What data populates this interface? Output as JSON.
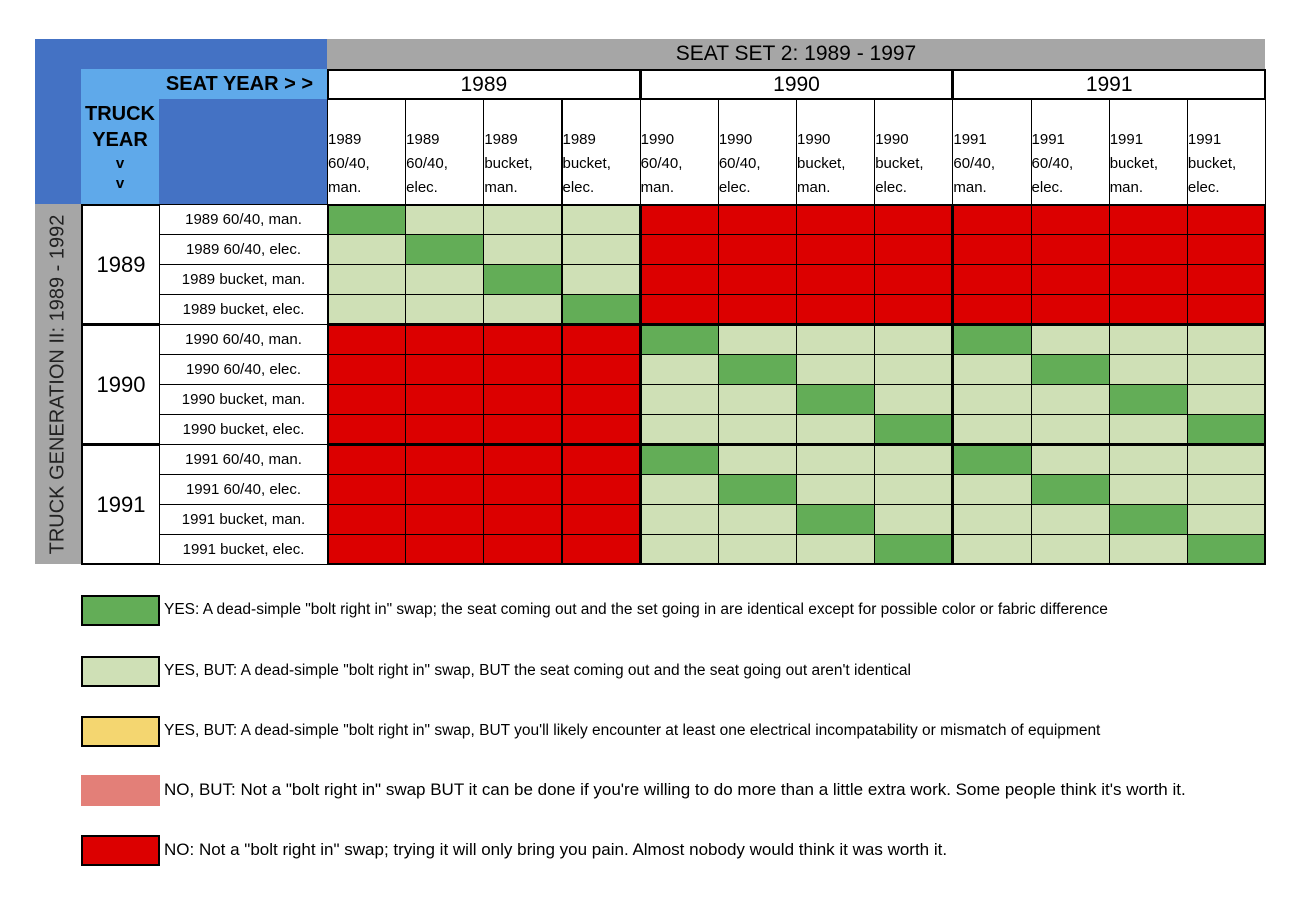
{
  "header": {
    "seat_set_title": "SEAT SET 2: 1989 - 1997",
    "seat_year_label": "SEAT YEAR > >",
    "truck_year_label_lines": [
      "TRUCK",
      "YEAR",
      "v",
      "v"
    ],
    "truck_generation_label": "TRUCK GENERATION II: 1989 - 1992"
  },
  "seat_years": [
    "1989",
    "1990",
    "1991"
  ],
  "seat_columns": [
    {
      "year": "1989",
      "type": "60/40,",
      "mode": "man."
    },
    {
      "year": "1989",
      "type": "60/40,",
      "mode": "elec."
    },
    {
      "year": "1989",
      "type": "bucket,",
      "mode": "man."
    },
    {
      "year": "1989",
      "type": "bucket,",
      "mode": "elec."
    },
    {
      "year": "1990",
      "type": "60/40,",
      "mode": "man."
    },
    {
      "year": "1990",
      "type": "60/40,",
      "mode": "elec."
    },
    {
      "year": "1990",
      "type": "bucket,",
      "mode": "man."
    },
    {
      "year": "1990",
      "type": "bucket,",
      "mode": "elec."
    },
    {
      "year": "1991",
      "type": "60/40,",
      "mode": "man."
    },
    {
      "year": "1991",
      "type": "60/40,",
      "mode": "elec."
    },
    {
      "year": "1991",
      "type": "bucket,",
      "mode": "man."
    },
    {
      "year": "1991",
      "type": "bucket,",
      "mode": "elec."
    }
  ],
  "truck_years": [
    "1989",
    "1990",
    "1991"
  ],
  "truck_rows": [
    "1989 60/40, man.",
    "1989 60/40, elec.",
    "1989 bucket, man.",
    "1989 bucket, elec.",
    "1990 60/40, man.",
    "1990 60/40, elec.",
    "1990 bucket, man.",
    "1990 bucket, elec.",
    "1991 60/40, man.",
    "1991 60/40, elec.",
    "1991 bucket, man.",
    "1991 bucket, elec."
  ],
  "colors": {
    "YES": "#63ad57",
    "YES_BUT": "#cfe0b6",
    "YES_BUT_ELEC": "#f4d670",
    "NO_BUT": "#e37f78",
    "NO": "#dc0000",
    "header_blue": "#4472c4",
    "header_light_blue": "#5fa9ea",
    "header_gray": "#a6a6a6"
  },
  "chart_data": {
    "type": "heatmap",
    "title": "SEAT SET 2: 1989 - 1997",
    "xlabel": "SEAT YEAR",
    "ylabel": "TRUCK GENERATION II: 1989 - 1992 (TRUCK YEAR)",
    "x": [
      "1989 60/40, man.",
      "1989 60/40, elec.",
      "1989 bucket, man.",
      "1989 bucket, elec.",
      "1990 60/40, man.",
      "1990 60/40, elec.",
      "1990 bucket, man.",
      "1990 bucket, elec.",
      "1991 60/40, man.",
      "1991 60/40, elec.",
      "1991 bucket, man.",
      "1991 bucket, elec."
    ],
    "y": [
      "1989 60/40, man.",
      "1989 60/40, elec.",
      "1989 bucket, man.",
      "1989 bucket, elec.",
      "1990 60/40, man.",
      "1990 60/40, elec.",
      "1990 bucket, man.",
      "1990 bucket, elec.",
      "1991 60/40, man.",
      "1991 60/40, elec.",
      "1991 bucket, man.",
      "1991 bucket, elec."
    ],
    "values": [
      [
        "YES",
        "YES_BUT",
        "YES_BUT",
        "YES_BUT",
        "NO",
        "NO",
        "NO",
        "NO",
        "NO",
        "NO",
        "NO",
        "NO"
      ],
      [
        "YES_BUT",
        "YES",
        "YES_BUT",
        "YES_BUT",
        "NO",
        "NO",
        "NO",
        "NO",
        "NO",
        "NO",
        "NO",
        "NO"
      ],
      [
        "YES_BUT",
        "YES_BUT",
        "YES",
        "YES_BUT",
        "NO",
        "NO",
        "NO",
        "NO",
        "NO",
        "NO",
        "NO",
        "NO"
      ],
      [
        "YES_BUT",
        "YES_BUT",
        "YES_BUT",
        "YES",
        "NO",
        "NO",
        "NO",
        "NO",
        "NO",
        "NO",
        "NO",
        "NO"
      ],
      [
        "NO",
        "NO",
        "NO",
        "NO",
        "YES",
        "YES_BUT",
        "YES_BUT",
        "YES_BUT",
        "YES",
        "YES_BUT",
        "YES_BUT",
        "YES_BUT"
      ],
      [
        "NO",
        "NO",
        "NO",
        "NO",
        "YES_BUT",
        "YES",
        "YES_BUT",
        "YES_BUT",
        "YES_BUT",
        "YES",
        "YES_BUT",
        "YES_BUT"
      ],
      [
        "NO",
        "NO",
        "NO",
        "NO",
        "YES_BUT",
        "YES_BUT",
        "YES",
        "YES_BUT",
        "YES_BUT",
        "YES_BUT",
        "YES",
        "YES_BUT"
      ],
      [
        "NO",
        "NO",
        "NO",
        "NO",
        "YES_BUT",
        "YES_BUT",
        "YES_BUT",
        "YES",
        "YES_BUT",
        "YES_BUT",
        "YES_BUT",
        "YES"
      ],
      [
        "NO",
        "NO",
        "NO",
        "NO",
        "YES",
        "YES_BUT",
        "YES_BUT",
        "YES_BUT",
        "YES",
        "YES_BUT",
        "YES_BUT",
        "YES_BUT"
      ],
      [
        "NO",
        "NO",
        "NO",
        "NO",
        "YES_BUT",
        "YES",
        "YES_BUT",
        "YES_BUT",
        "YES_BUT",
        "YES",
        "YES_BUT",
        "YES_BUT"
      ],
      [
        "NO",
        "NO",
        "NO",
        "NO",
        "YES_BUT",
        "YES_BUT",
        "YES",
        "YES_BUT",
        "YES_BUT",
        "YES_BUT",
        "YES",
        "YES_BUT"
      ],
      [
        "NO",
        "NO",
        "NO",
        "NO",
        "YES_BUT",
        "YES_BUT",
        "YES_BUT",
        "YES",
        "YES_BUT",
        "YES_BUT",
        "YES_BUT",
        "YES"
      ]
    ],
    "legend": [
      {
        "key": "YES",
        "color": "#63ad57",
        "label": "YES: A dead-simple \"bolt right in\" swap; the seat coming out and the set going in are identical except for possible color or fabric difference"
      },
      {
        "key": "YES_BUT",
        "color": "#cfe0b6",
        "label": "YES, BUT: A dead-simple \"bolt right in\" swap, BUT the seat coming out and the seat going out aren't identical"
      },
      {
        "key": "YES_BUT_ELEC",
        "color": "#f4d670",
        "label": "YES, BUT: A dead-simple \"bolt right in\" swap, BUT you'll likely encounter at least one electrical incompatability or mismatch of equipment"
      },
      {
        "key": "NO_BUT",
        "color": "#e37f78",
        "label": "NO, BUT: Not a \"bolt right in\" swap BUT it can be done if you're willing to do more than a little extra work. Some people think it's worth it."
      },
      {
        "key": "NO",
        "color": "#dc0000",
        "label": "NO: Not a \"bolt right in\" swap; trying it will only bring you pain. Almost nobody would think it was worth it."
      }
    ],
    "legend_position": "bottom"
  },
  "legend": [
    {
      "color": "#63ad57",
      "bordered": true,
      "text": "YES: A dead-simple \"bolt right in\" swap; the seat coming out and the set going in are identical except for possible color or fabric difference"
    },
    {
      "color": "#cfe0b6",
      "bordered": true,
      "text": "YES, BUT: A dead-simple \"bolt right in\" swap, BUT the seat coming out and the seat going out aren't identical"
    },
    {
      "color": "#f4d670",
      "bordered": true,
      "text": "YES, BUT: A dead-simple \"bolt right in\" swap, BUT you'll likely encounter at least one electrical incompatability or mismatch of equipment"
    },
    {
      "color": "#e37f78",
      "bordered": false,
      "text": "NO, BUT: Not a \"bolt right in\" swap BUT it can be done if you're willing to do more than a little extra work. Some people think it's worth it."
    },
    {
      "color": "#dc0000",
      "bordered": true,
      "text": "NO: Not a \"bolt right in\" swap; trying it will only bring you pain. Almost nobody would think it was worth it."
    }
  ]
}
